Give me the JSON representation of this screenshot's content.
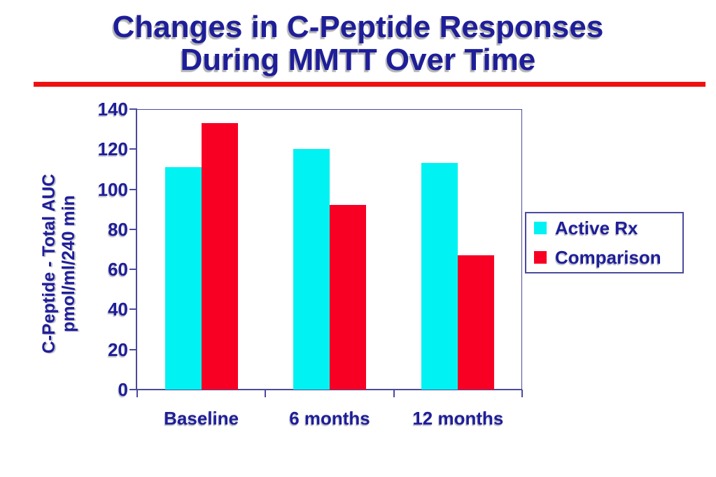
{
  "slide": {
    "title_line1": "Changes in C-Peptide Responses",
    "title_line2": "During MMTT Over Time"
  },
  "colors": {
    "title_navy": "#1e1e99",
    "text_navy": "#1e1e99",
    "axis_navy": "#4a4a9e",
    "rule_red": "#ee1111",
    "active_rx_cyan": "#00f2f2",
    "comparison_red": "#f80023"
  },
  "chart_data": {
    "type": "bar",
    "title": "",
    "categories": [
      "Baseline",
      "6 months",
      "12 months"
    ],
    "series": [
      {
        "name": "Active Rx",
        "color": "#00f2f2",
        "values": [
          111,
          120,
          113
        ]
      },
      {
        "name": "Comparison",
        "color": "#f80023",
        "values": [
          133,
          92,
          67
        ]
      }
    ],
    "ylabel_line1": "C-Peptide - Total AUC",
    "ylabel_line2": "pmol/ml/240 min",
    "xlabel": "",
    "ylim": [
      0,
      140
    ],
    "ytick_step": 20,
    "ytick_labels": [
      "0",
      "20",
      "40",
      "60",
      "80",
      "100",
      "120",
      "140"
    ],
    "grid": false,
    "legend_position": "right"
  }
}
